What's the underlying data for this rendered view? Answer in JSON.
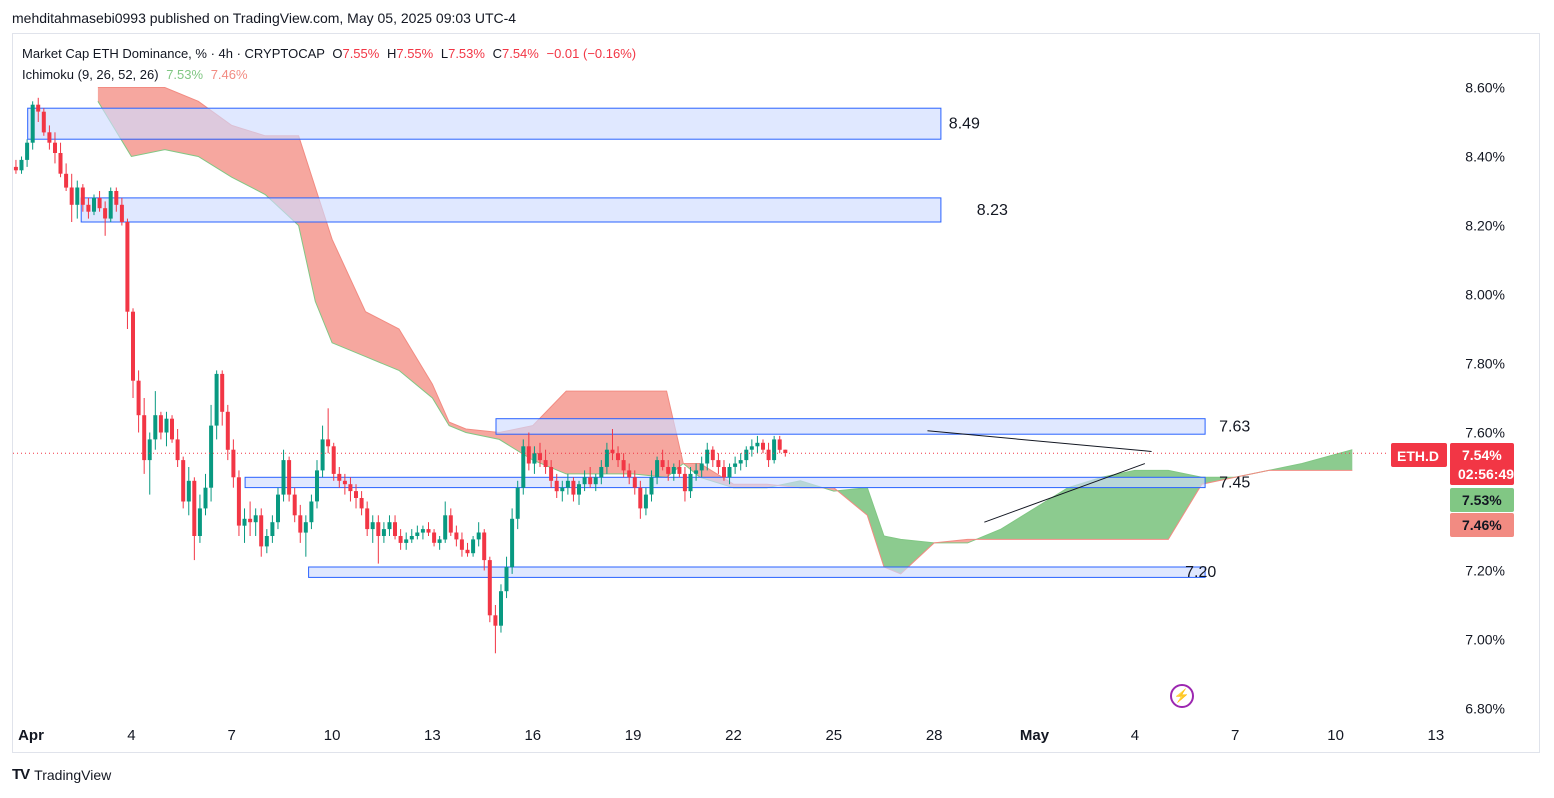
{
  "publisher_line": "mehditahmasebi0993 published on TradingView.com, May 05, 2025 09:03 UTC-4",
  "legend": {
    "symbol_text": "Market Cap ETH Dominance, % · 4h · CRYPTOCAP",
    "o_label": "O",
    "o_value": "7.55%",
    "h_label": "H",
    "h_value": "7.55%",
    "l_label": "L",
    "l_value": "7.53%",
    "c_label": "C",
    "c_value": "7.54%",
    "change": "−0.01 (−0.16%)",
    "indicator": "Ichimoku (9, 26, 52, 26)",
    "span_a_value": "7.53%",
    "span_b_value": "7.46%"
  },
  "price_badge": {
    "symbol": "ETH.D",
    "price": "7.54%",
    "countdown": "02:56:49"
  },
  "colors": {
    "up": "#089981",
    "down": "#f23645",
    "span_a": "#81c784",
    "span_b": "#f28b82",
    "kumo_bear": "#f6a79f",
    "kumo_bull": "#8ccb8f",
    "zone_fill": "#cfdcff",
    "zone_border": "#2962ff"
  },
  "footer": {
    "logo_text": "TV",
    "brand": "TradingView"
  },
  "icons": [
    "lightning-icon",
    "tradingview-logo-icon"
  ],
  "chart_data": {
    "type": "candlestick",
    "title": "Market Cap ETH Dominance, % · 4h · CRYPTOCAP",
    "ylim": [
      6.78,
      8.68
    ],
    "y_ticks": [
      "8.60%",
      "8.40%",
      "8.20%",
      "8.00%",
      "7.80%",
      "7.60%",
      "7.20%",
      "7.00%",
      "6.80%"
    ],
    "x_ticks": [
      "Apr",
      "4",
      "7",
      "10",
      "13",
      "16",
      "19",
      "22",
      "25",
      "28",
      "May",
      "4",
      "7",
      "10",
      "13"
    ],
    "grid": false,
    "zones": [
      {
        "label": "8.49",
        "low": 8.45,
        "high": 8.54,
        "start_day": -0.1,
        "end_day": 27.2
      },
      {
        "label": "8.23",
        "low": 8.21,
        "high": 8.28,
        "start_day": 1.5,
        "end_day": 27.2
      },
      {
        "label": "7.63",
        "low": 7.595,
        "high": 7.64,
        "start_day": 13.9,
        "end_day": 35.1
      },
      {
        "label": "7.45",
        "low": 7.44,
        "high": 7.47,
        "start_day": 6.4,
        "end_day": 35.1
      },
      {
        "label": "7.20",
        "low": 7.18,
        "high": 7.21,
        "start_day": 8.3,
        "end_day": 35.1
      }
    ],
    "trendlines": [
      {
        "x1": 26.8,
        "y1": 7.605,
        "x2": 33.5,
        "y2": 7.545
      },
      {
        "x1": 28.5,
        "y1": 7.34,
        "x2": 33.3,
        "y2": 7.51
      }
    ],
    "kumo": {
      "x": [
        2,
        3,
        4,
        5,
        6,
        7,
        8,
        8.5,
        9,
        10,
        11,
        12,
        12.5,
        13,
        14,
        15,
        16,
        17,
        18,
        19,
        19.5,
        20,
        21,
        22,
        23,
        24,
        25,
        25.5,
        26,
        27,
        28,
        29,
        30,
        31,
        32,
        33,
        34,
        35,
        36,
        37,
        38,
        39.5
      ],
      "span_a": [
        8.56,
        8.4,
        8.42,
        8.4,
        8.34,
        8.29,
        8.2,
        7.98,
        7.86,
        7.82,
        7.78,
        7.7,
        7.62,
        7.6,
        7.58,
        7.52,
        7.48,
        7.48,
        7.48,
        7.47,
        7.51,
        7.47,
        7.44,
        7.44,
        7.46,
        7.43,
        7.44,
        7.3,
        7.29,
        7.28,
        7.28,
        7.32,
        7.38,
        7.44,
        7.47,
        7.49,
        7.49,
        7.47,
        7.47,
        7.49,
        7.51,
        7.55
      ],
      "span_b": [
        8.6,
        8.6,
        8.6,
        8.56,
        8.49,
        8.46,
        8.46,
        8.31,
        8.16,
        7.95,
        7.9,
        7.74,
        7.63,
        7.61,
        7.6,
        7.62,
        7.72,
        7.72,
        7.72,
        7.72,
        7.51,
        7.51,
        7.45,
        7.45,
        7.44,
        7.44,
        7.36,
        7.21,
        7.19,
        7.28,
        7.29,
        7.29,
        7.29,
        7.29,
        7.29,
        7.29,
        7.29,
        7.45,
        7.47,
        7.49,
        7.49,
        7.49
      ]
    },
    "candles": [
      {
        "o": 8.37,
        "h": 8.39,
        "l": 8.35,
        "c": 8.36
      },
      {
        "o": 8.36,
        "h": 8.4,
        "l": 8.35,
        "c": 8.39
      },
      {
        "o": 8.39,
        "h": 8.45,
        "l": 8.37,
        "c": 8.44
      },
      {
        "o": 8.44,
        "h": 8.56,
        "l": 8.42,
        "c": 8.55
      },
      {
        "o": 8.55,
        "h": 8.57,
        "l": 8.5,
        "c": 8.53
      },
      {
        "o": 8.53,
        "h": 8.54,
        "l": 8.46,
        "c": 8.47
      },
      {
        "o": 8.47,
        "h": 8.49,
        "l": 8.42,
        "c": 8.44
      },
      {
        "o": 8.44,
        "h": 8.47,
        "l": 8.38,
        "c": 8.41
      },
      {
        "o": 8.41,
        "h": 8.44,
        "l": 8.34,
        "c": 8.35
      },
      {
        "o": 8.35,
        "h": 8.38,
        "l": 8.3,
        "c": 8.31
      },
      {
        "o": 8.31,
        "h": 8.35,
        "l": 8.21,
        "c": 8.26
      },
      {
        "o": 8.26,
        "h": 8.33,
        "l": 8.22,
        "c": 8.31
      },
      {
        "o": 8.31,
        "h": 8.32,
        "l": 8.24,
        "c": 8.26
      },
      {
        "o": 8.26,
        "h": 8.28,
        "l": 8.22,
        "c": 8.24
      },
      {
        "o": 8.24,
        "h": 8.29,
        "l": 8.23,
        "c": 8.28
      },
      {
        "o": 8.28,
        "h": 8.3,
        "l": 8.24,
        "c": 8.25
      },
      {
        "o": 8.25,
        "h": 8.27,
        "l": 8.17,
        "c": 8.22
      },
      {
        "o": 8.22,
        "h": 8.31,
        "l": 8.21,
        "c": 8.3
      },
      {
        "o": 8.3,
        "h": 8.31,
        "l": 8.24,
        "c": 8.26
      },
      {
        "o": 8.26,
        "h": 8.28,
        "l": 8.2,
        "c": 8.21
      },
      {
        "o": 8.21,
        "h": 8.22,
        "l": 7.9,
        "c": 7.95
      },
      {
        "o": 7.95,
        "h": 7.96,
        "l": 7.7,
        "c": 7.75
      },
      {
        "o": 7.75,
        "h": 7.78,
        "l": 7.6,
        "c": 7.65
      },
      {
        "o": 7.65,
        "h": 7.7,
        "l": 7.48,
        "c": 7.52
      },
      {
        "o": 7.52,
        "h": 7.6,
        "l": 7.42,
        "c": 7.58
      },
      {
        "o": 7.58,
        "h": 7.72,
        "l": 7.55,
        "c": 7.65
      },
      {
        "o": 7.65,
        "h": 7.66,
        "l": 7.58,
        "c": 7.6
      },
      {
        "o": 7.6,
        "h": 7.66,
        "l": 7.56,
        "c": 7.64
      },
      {
        "o": 7.64,
        "h": 7.65,
        "l": 7.57,
        "c": 7.58
      },
      {
        "o": 7.58,
        "h": 7.61,
        "l": 7.5,
        "c": 7.52
      },
      {
        "o": 7.52,
        "h": 7.53,
        "l": 7.38,
        "c": 7.4
      },
      {
        "o": 7.4,
        "h": 7.5,
        "l": 7.36,
        "c": 7.46
      },
      {
        "o": 7.46,
        "h": 7.47,
        "l": 7.23,
        "c": 7.3
      },
      {
        "o": 7.3,
        "h": 7.42,
        "l": 7.28,
        "c": 7.38
      },
      {
        "o": 7.38,
        "h": 7.48,
        "l": 7.36,
        "c": 7.44
      },
      {
        "o": 7.44,
        "h": 7.68,
        "l": 7.4,
        "c": 7.62
      },
      {
        "o": 7.62,
        "h": 7.78,
        "l": 7.58,
        "c": 7.77
      },
      {
        "o": 7.77,
        "h": 7.78,
        "l": 7.62,
        "c": 7.66
      },
      {
        "o": 7.66,
        "h": 7.68,
        "l": 7.52,
        "c": 7.55
      },
      {
        "o": 7.55,
        "h": 7.58,
        "l": 7.44,
        "c": 7.47
      },
      {
        "o": 7.47,
        "h": 7.49,
        "l": 7.3,
        "c": 7.33
      },
      {
        "o": 7.33,
        "h": 7.38,
        "l": 7.28,
        "c": 7.35
      },
      {
        "o": 7.35,
        "h": 7.4,
        "l": 7.3,
        "c": 7.34
      },
      {
        "o": 7.34,
        "h": 7.38,
        "l": 7.3,
        "c": 7.36
      },
      {
        "o": 7.36,
        "h": 7.38,
        "l": 7.24,
        "c": 7.27
      },
      {
        "o": 7.27,
        "h": 7.32,
        "l": 7.25,
        "c": 7.3
      },
      {
        "o": 7.3,
        "h": 7.36,
        "l": 7.28,
        "c": 7.34
      },
      {
        "o": 7.34,
        "h": 7.44,
        "l": 7.32,
        "c": 7.42
      },
      {
        "o": 7.42,
        "h": 7.55,
        "l": 7.4,
        "c": 7.52
      },
      {
        "o": 7.52,
        "h": 7.53,
        "l": 7.4,
        "c": 7.42
      },
      {
        "o": 7.42,
        "h": 7.44,
        "l": 7.34,
        "c": 7.36
      },
      {
        "o": 7.36,
        "h": 7.39,
        "l": 7.28,
        "c": 7.31
      },
      {
        "o": 7.31,
        "h": 7.36,
        "l": 7.24,
        "c": 7.34
      },
      {
        "o": 7.34,
        "h": 7.42,
        "l": 7.32,
        "c": 7.4
      },
      {
        "o": 7.4,
        "h": 7.52,
        "l": 7.38,
        "c": 7.49
      },
      {
        "o": 7.49,
        "h": 7.62,
        "l": 7.47,
        "c": 7.58
      },
      {
        "o": 7.58,
        "h": 7.67,
        "l": 7.54,
        "c": 7.56
      },
      {
        "o": 7.56,
        "h": 7.57,
        "l": 7.46,
        "c": 7.48
      },
      {
        "o": 7.48,
        "h": 7.5,
        "l": 7.44,
        "c": 7.46
      },
      {
        "o": 7.46,
        "h": 7.48,
        "l": 7.42,
        "c": 7.45
      },
      {
        "o": 7.45,
        "h": 7.47,
        "l": 7.4,
        "c": 7.43
      },
      {
        "o": 7.43,
        "h": 7.45,
        "l": 7.38,
        "c": 7.41
      },
      {
        "o": 7.41,
        "h": 7.43,
        "l": 7.36,
        "c": 7.38
      },
      {
        "o": 7.38,
        "h": 7.4,
        "l": 7.3,
        "c": 7.32
      },
      {
        "o": 7.32,
        "h": 7.36,
        "l": 7.28,
        "c": 7.34
      },
      {
        "o": 7.34,
        "h": 7.36,
        "l": 7.22,
        "c": 7.3
      },
      {
        "o": 7.3,
        "h": 7.34,
        "l": 7.28,
        "c": 7.32
      },
      {
        "o": 7.32,
        "h": 7.36,
        "l": 7.3,
        "c": 7.34
      },
      {
        "o": 7.34,
        "h": 7.36,
        "l": 7.29,
        "c": 7.3
      },
      {
        "o": 7.3,
        "h": 7.32,
        "l": 7.26,
        "c": 7.28
      },
      {
        "o": 7.28,
        "h": 7.31,
        "l": 7.26,
        "c": 7.29
      },
      {
        "o": 7.29,
        "h": 7.32,
        "l": 7.28,
        "c": 7.3
      },
      {
        "o": 7.3,
        "h": 7.33,
        "l": 7.29,
        "c": 7.31
      },
      {
        "o": 7.31,
        "h": 7.33,
        "l": 7.29,
        "c": 7.32
      },
      {
        "o": 7.32,
        "h": 7.34,
        "l": 7.3,
        "c": 7.31
      },
      {
        "o": 7.31,
        "h": 7.32,
        "l": 7.27,
        "c": 7.28
      },
      {
        "o": 7.28,
        "h": 7.3,
        "l": 7.26,
        "c": 7.29
      },
      {
        "o": 7.29,
        "h": 7.4,
        "l": 7.28,
        "c": 7.36
      },
      {
        "o": 7.36,
        "h": 7.38,
        "l": 7.3,
        "c": 7.31
      },
      {
        "o": 7.31,
        "h": 7.33,
        "l": 7.27,
        "c": 7.29
      },
      {
        "o": 7.29,
        "h": 7.31,
        "l": 7.24,
        "c": 7.26
      },
      {
        "o": 7.26,
        "h": 7.28,
        "l": 7.24,
        "c": 7.25
      },
      {
        "o": 7.25,
        "h": 7.3,
        "l": 7.24,
        "c": 7.29
      },
      {
        "o": 7.29,
        "h": 7.34,
        "l": 7.27,
        "c": 7.31
      },
      {
        "o": 7.31,
        "h": 7.32,
        "l": 7.2,
        "c": 7.23
      },
      {
        "o": 7.23,
        "h": 7.24,
        "l": 7.05,
        "c": 7.07
      },
      {
        "o": 7.07,
        "h": 7.1,
        "l": 6.96,
        "c": 7.04
      },
      {
        "o": 7.04,
        "h": 7.16,
        "l": 7.02,
        "c": 7.14
      },
      {
        "o": 7.14,
        "h": 7.24,
        "l": 7.12,
        "c": 7.21
      },
      {
        "o": 7.21,
        "h": 7.38,
        "l": 7.19,
        "c": 7.35
      },
      {
        "o": 7.35,
        "h": 7.46,
        "l": 7.32,
        "c": 7.44
      },
      {
        "o": 7.44,
        "h": 7.58,
        "l": 7.42,
        "c": 7.56
      },
      {
        "o": 7.56,
        "h": 7.6,
        "l": 7.49,
        "c": 7.51
      },
      {
        "o": 7.51,
        "h": 7.56,
        "l": 7.48,
        "c": 7.54
      },
      {
        "o": 7.54,
        "h": 7.57,
        "l": 7.5,
        "c": 7.52
      },
      {
        "o": 7.52,
        "h": 7.55,
        "l": 7.48,
        "c": 7.5
      },
      {
        "o": 7.5,
        "h": 7.52,
        "l": 7.44,
        "c": 7.46
      },
      {
        "o": 7.46,
        "h": 7.48,
        "l": 7.41,
        "c": 7.43
      },
      {
        "o": 7.43,
        "h": 7.46,
        "l": 7.4,
        "c": 7.44
      },
      {
        "o": 7.44,
        "h": 7.48,
        "l": 7.42,
        "c": 7.46
      },
      {
        "o": 7.46,
        "h": 7.47,
        "l": 7.4,
        "c": 7.42
      },
      {
        "o": 7.42,
        "h": 7.46,
        "l": 7.39,
        "c": 7.45
      },
      {
        "o": 7.45,
        "h": 7.49,
        "l": 7.43,
        "c": 7.47
      },
      {
        "o": 7.47,
        "h": 7.5,
        "l": 7.44,
        "c": 7.45
      },
      {
        "o": 7.45,
        "h": 7.48,
        "l": 7.43,
        "c": 7.47
      },
      {
        "o": 7.47,
        "h": 7.52,
        "l": 7.45,
        "c": 7.5
      },
      {
        "o": 7.5,
        "h": 7.57,
        "l": 7.48,
        "c": 7.55
      },
      {
        "o": 7.55,
        "h": 7.61,
        "l": 7.52,
        "c": 7.54
      },
      {
        "o": 7.54,
        "h": 7.56,
        "l": 7.5,
        "c": 7.52
      },
      {
        "o": 7.52,
        "h": 7.54,
        "l": 7.47,
        "c": 7.49
      },
      {
        "o": 7.49,
        "h": 7.51,
        "l": 7.45,
        "c": 7.47
      },
      {
        "o": 7.47,
        "h": 7.49,
        "l": 7.42,
        "c": 7.44
      },
      {
        "o": 7.44,
        "h": 7.46,
        "l": 7.35,
        "c": 7.38
      },
      {
        "o": 7.38,
        "h": 7.44,
        "l": 7.36,
        "c": 7.42
      },
      {
        "o": 7.42,
        "h": 7.49,
        "l": 7.4,
        "c": 7.47
      },
      {
        "o": 7.47,
        "h": 7.53,
        "l": 7.45,
        "c": 7.52
      },
      {
        "o": 7.52,
        "h": 7.55,
        "l": 7.49,
        "c": 7.5
      },
      {
        "o": 7.5,
        "h": 7.52,
        "l": 7.46,
        "c": 7.48
      },
      {
        "o": 7.48,
        "h": 7.51,
        "l": 7.46,
        "c": 7.5
      },
      {
        "o": 7.5,
        "h": 7.52,
        "l": 7.47,
        "c": 7.48
      },
      {
        "o": 7.48,
        "h": 7.5,
        "l": 7.4,
        "c": 7.43
      },
      {
        "o": 7.43,
        "h": 7.5,
        "l": 7.41,
        "c": 7.48
      },
      {
        "o": 7.48,
        "h": 7.51,
        "l": 7.46,
        "c": 7.49
      },
      {
        "o": 7.49,
        "h": 7.53,
        "l": 7.47,
        "c": 7.51
      },
      {
        "o": 7.51,
        "h": 7.57,
        "l": 7.49,
        "c": 7.55
      },
      {
        "o": 7.55,
        "h": 7.56,
        "l": 7.5,
        "c": 7.52
      },
      {
        "o": 7.52,
        "h": 7.54,
        "l": 7.48,
        "c": 7.5
      },
      {
        "o": 7.5,
        "h": 7.52,
        "l": 7.46,
        "c": 7.47
      },
      {
        "o": 7.47,
        "h": 7.51,
        "l": 7.45,
        "c": 7.5
      },
      {
        "o": 7.5,
        "h": 7.53,
        "l": 7.48,
        "c": 7.51
      },
      {
        "o": 7.51,
        "h": 7.54,
        "l": 7.49,
        "c": 7.52
      },
      {
        "o": 7.52,
        "h": 7.56,
        "l": 7.5,
        "c": 7.55
      },
      {
        "o": 7.55,
        "h": 7.58,
        "l": 7.53,
        "c": 7.56
      },
      {
        "o": 7.56,
        "h": 7.59,
        "l": 7.54,
        "c": 7.57
      },
      {
        "o": 7.57,
        "h": 7.58,
        "l": 7.54,
        "c": 7.55
      },
      {
        "o": 7.55,
        "h": 7.57,
        "l": 7.5,
        "c": 7.52
      },
      {
        "o": 7.52,
        "h": 7.59,
        "l": 7.51,
        "c": 7.58
      },
      {
        "o": 7.58,
        "h": 7.59,
        "l": 7.54,
        "c": 7.55
      },
      {
        "o": 7.55,
        "h": 7.55,
        "l": 7.53,
        "c": 7.54
      }
    ]
  }
}
